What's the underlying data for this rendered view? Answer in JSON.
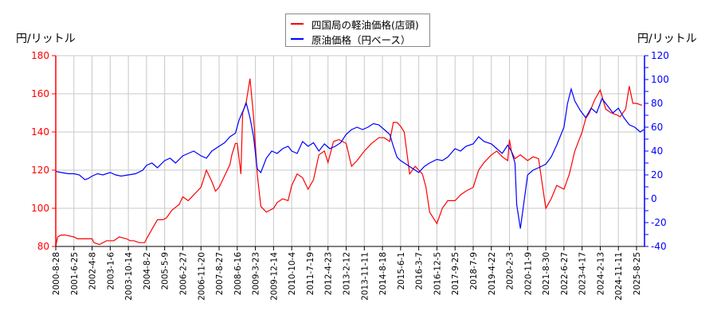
{
  "chart_data": {
    "type": "line",
    "title": "",
    "legend": {
      "position": "top-center",
      "entries": [
        {
          "label": "四国局の軽油価格(店頭)",
          "color": "#ff0000",
          "axis": "left"
        },
        {
          "label": "原油価格（円ベース）",
          "color": "#0000ff",
          "axis": "right"
        }
      ]
    },
    "ylabel_left": "円/リットル",
    "ylabel_right": "円/リットル",
    "ylim_left": [
      80,
      180
    ],
    "ylim_right": [
      -40,
      120
    ],
    "yticks_left": [
      80,
      100,
      120,
      140,
      160,
      180
    ],
    "yticks_right": [
      -40,
      -20,
      0,
      20,
      40,
      60,
      80,
      100,
      120
    ],
    "left_axis_color": "#ff0000",
    "right_axis_color": "#0000ff",
    "grid": true,
    "x_tick_labels": [
      "2000-8-28",
      "2001-6-25",
      "2002-4-8",
      "2003-1-6",
      "2003-10-14",
      "2004-8-2",
      "2005-5-9",
      "2006-2-27",
      "2006-11-20",
      "2007-8-27",
      "2008-6-16",
      "2009-3-23",
      "2009-12-14",
      "2010-10-4",
      "2011-7-19",
      "2012-4-23",
      "2013-2-12",
      "2013-11-11",
      "2014-8-18",
      "2015-6-1",
      "2016-3-7",
      "2016-12-5",
      "2017-9-25",
      "2018-7-9",
      "2019-4-22",
      "2020-2-3",
      "2020-11-9",
      "2021-8-30",
      "2022-6-27",
      "2023-4-17",
      "2024-2-13",
      "2024-11-11",
      "2025-8-25"
    ],
    "series": [
      {
        "name": "四国局の軽油価格(店頭)",
        "axis": "left",
        "color": "#ff0000",
        "x_index": [
          0,
          0.1,
          0.3,
          0.5,
          1.0,
          1.2,
          1.6,
          2.0,
          2.1,
          2.4,
          2.8,
          3.0,
          3.2,
          3.5,
          3.9,
          4.1,
          4.3,
          4.6,
          4.9,
          5.0,
          5.3,
          5.6,
          5.9,
          6.1,
          6.4,
          6.8,
          7.0,
          7.3,
          7.6,
          8.0,
          8.3,
          8.6,
          8.8,
          9.0,
          9.3,
          9.6,
          9.7,
          9.9,
          10.0,
          10.2,
          10.3,
          10.5,
          10.7,
          10.9,
          11.1,
          11.3,
          11.6,
          12.0,
          12.2,
          12.5,
          12.8,
          13.0,
          13.3,
          13.6,
          13.9,
          14.2,
          14.5,
          14.8,
          15.0,
          15.3,
          15.6,
          16.0,
          16.3,
          16.6,
          17.0,
          17.4,
          17.8,
          18.1,
          18.4,
          18.6,
          18.8,
          19.0,
          19.2,
          19.5,
          19.8,
          20.0,
          20.2,
          20.4,
          20.6,
          21.0,
          21.3,
          21.6,
          22.0,
          22.3,
          22.6,
          23.0,
          23.3,
          23.6,
          24.0,
          24.3,
          24.6,
          24.9,
          25.0,
          25.1,
          25.3,
          25.6,
          26.0,
          26.3,
          26.6,
          27.0,
          27.3,
          27.6,
          28.0,
          28.3,
          28.6,
          29.0,
          29.2,
          29.4,
          29.7,
          30.0,
          30.3,
          30.6,
          30.9,
          31.1,
          31.4,
          31.6,
          31.8,
          32.0,
          32.3
        ],
        "values": [
          80,
          85,
          86,
          86,
          85,
          84,
          84,
          84,
          82,
          81,
          83,
          83,
          83,
          85,
          84,
          83,
          83,
          82,
          82,
          84,
          89,
          94,
          94,
          95,
          99,
          102,
          106,
          104,
          107,
          111,
          120,
          114,
          109,
          111,
          117,
          123,
          128,
          134,
          134,
          118,
          150,
          156,
          168,
          148,
          118,
          101,
          98,
          100,
          103,
          105,
          104,
          112,
          118,
          116,
          110,
          115,
          128,
          130,
          124,
          135,
          136,
          134,
          122,
          125,
          130,
          134,
          137,
          137,
          135,
          145,
          145,
          143,
          140,
          118,
          122,
          120,
          118,
          111,
          98,
          92,
          100,
          104,
          104,
          107,
          109,
          111,
          120,
          124,
          128,
          130,
          127,
          125,
          136,
          130,
          126,
          128,
          125,
          127,
          126,
          100,
          105,
          112,
          110,
          118,
          130,
          140,
          147,
          150,
          157,
          162,
          152,
          150,
          149,
          148,
          152,
          164,
          155,
          155,
          154,
          156,
          153,
          165,
          171,
          152,
          150,
          150,
          140
        ],
        "note": "values are approximate readings; x_index is position in units of x tick spacing from 2000-8-28"
      },
      {
        "name": "原油価格（円ベース）",
        "axis": "right",
        "color": "#0000ff",
        "x_index": [
          0,
          0.3,
          0.7,
          1.0,
          1.3,
          1.6,
          1.8,
          2.0,
          2.3,
          2.6,
          3.0,
          3.3,
          3.6,
          4.0,
          4.4,
          4.8,
          5.0,
          5.3,
          5.6,
          6.0,
          6.3,
          6.6,
          7.0,
          7.3,
          7.6,
          8.0,
          8.3,
          8.6,
          9.0,
          9.3,
          9.6,
          9.9,
          10.1,
          10.3,
          10.5,
          10.7,
          10.9,
          11.1,
          11.3,
          11.6,
          11.9,
          12.2,
          12.5,
          12.8,
          13.0,
          13.3,
          13.6,
          13.9,
          14.2,
          14.5,
          14.8,
          15.1,
          15.4,
          15.7,
          16.0,
          16.3,
          16.6,
          16.9,
          17.2,
          17.5,
          17.8,
          18.1,
          18.4,
          18.6,
          18.8,
          19.0,
          19.2,
          19.5,
          19.8,
          20.0,
          20.3,
          20.6,
          21.0,
          21.3,
          21.6,
          22.0,
          22.3,
          22.6,
          23.0,
          23.3,
          23.6,
          24.0,
          24.3,
          24.6,
          24.9,
          25.1,
          25.3,
          25.4,
          25.6,
          26.0,
          26.3,
          26.6,
          27.0,
          27.3,
          27.6,
          28.0,
          28.2,
          28.4,
          28.6,
          28.9,
          29.2,
          29.5,
          29.8,
          30.1,
          30.4,
          30.7,
          31.0,
          31.3,
          31.6,
          31.9,
          32.2,
          32.4
        ],
        "values": [
          23,
          22,
          21,
          21,
          20,
          16,
          17,
          19,
          21,
          20,
          22,
          20,
          19,
          20,
          21,
          24,
          28,
          30,
          26,
          32,
          34,
          30,
          36,
          38,
          40,
          36,
          34,
          40,
          44,
          47,
          52,
          55,
          66,
          73,
          80,
          68,
          52,
          25,
          22,
          34,
          40,
          38,
          42,
          44,
          40,
          38,
          48,
          44,
          47,
          40,
          46,
          42,
          44,
          47,
          54,
          58,
          60,
          58,
          60,
          63,
          62,
          58,
          54,
          44,
          35,
          32,
          30,
          27,
          24,
          22,
          27,
          30,
          33,
          32,
          35,
          42,
          40,
          44,
          46,
          52,
          48,
          46,
          42,
          38,
          45,
          40,
          30,
          -5,
          -25,
          20,
          24,
          26,
          29,
          35,
          45,
          60,
          80,
          92,
          82,
          74,
          68,
          76,
          72,
          84,
          78,
          72,
          76,
          68,
          62,
          60,
          56,
          58
        ],
        "note": "values are approximate readings"
      }
    ]
  }
}
